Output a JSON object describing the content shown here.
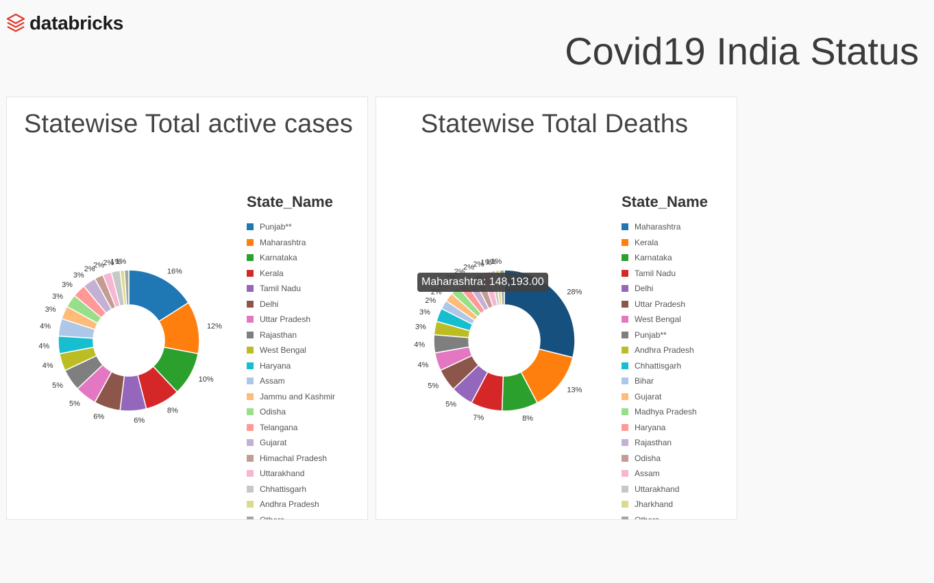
{
  "brand": {
    "name": "databricks",
    "logo_icon": "databricks-logo-icon"
  },
  "page_title": "Covid19 India Status",
  "charts": [
    {
      "title": "Statewise Total active cases",
      "legend_title": "State_Name",
      "legend_items": [
        "Punjab**",
        "Maharashtra",
        "Karnataka",
        "Kerala",
        "Tamil Nadu",
        "Delhi",
        "Uttar Pradesh",
        "Rajasthan",
        "West Bengal",
        "Haryana",
        "Assam",
        "Jammu and Kashmir",
        "Odisha",
        "Telangana",
        "Gujarat",
        "Himachal Pradesh",
        "Uttarakhand",
        "Chhattisgarh",
        "Andhra Pradesh",
        "Others"
      ]
    },
    {
      "title": "Statewise Total Deaths",
      "legend_title": "State_Name",
      "legend_items": [
        "Maharashtra",
        "Kerala",
        "Karnataka",
        "Tamil Nadu",
        "Delhi",
        "Uttar Pradesh",
        "West Bengal",
        "Punjab**",
        "Andhra Pradesh",
        "Chhattisgarh",
        "Bihar",
        "Gujarat",
        "Madhya Pradesh",
        "Haryana",
        "Rajasthan",
        "Odisha",
        "Assam",
        "Uttarakhand",
        "Jharkhand",
        "Others"
      ],
      "tooltip": "Maharashtra: 148,193.00"
    }
  ],
  "colors": [
    "#1f77b4",
    "#ff7f0e",
    "#2ca02c",
    "#d62728",
    "#9467bd",
    "#8c564b",
    "#e377c2",
    "#7f7f7f",
    "#bcbd22",
    "#17becf",
    "#aec7e8",
    "#ffbb78",
    "#98df8a",
    "#ff9896",
    "#c5b0d5",
    "#c49c94",
    "#f7b6d2",
    "#c7c7c7",
    "#dbdb8d",
    "#a5a5a5"
  ],
  "chart_data": [
    {
      "type": "pie",
      "title": "Statewise Total active cases",
      "legend_title": "State_Name",
      "categories": [
        "Punjab**",
        "Maharashtra",
        "Karnataka",
        "Kerala",
        "Tamil Nadu",
        "Delhi",
        "Uttar Pradesh",
        "Rajasthan",
        "West Bengal",
        "Haryana",
        "Assam",
        "Jammu and Kashmir",
        "Odisha",
        "Telangana",
        "Gujarat",
        "Himachal Pradesh",
        "Uttarakhand",
        "Chhattisgarh",
        "Andhra Pradesh",
        "Others"
      ],
      "values": [
        16,
        12,
        10,
        8,
        6,
        6,
        5,
        5,
        4,
        4,
        4,
        3,
        3,
        3,
        3,
        2,
        2,
        2,
        1,
        1
      ],
      "labels": [
        "16%",
        "12%",
        "10%",
        "8%",
        "6%",
        "6%",
        "5%",
        "5%",
        "4%",
        "4%",
        "4%",
        "3%",
        "3%",
        "3%",
        "3%",
        "2%",
        "2%",
        "2%",
        "1%",
        "1%"
      ],
      "legend_position": "right"
    },
    {
      "type": "pie",
      "title": "Statewise Total Deaths",
      "legend_title": "State_Name",
      "categories": [
        "Maharashtra",
        "Kerala",
        "Karnataka",
        "Tamil Nadu",
        "Delhi",
        "Uttar Pradesh",
        "West Bengal",
        "Punjab**",
        "Andhra Pradesh",
        "Chhattisgarh",
        "Bihar",
        "Gujarat",
        "Madhya Pradesh",
        "Haryana",
        "Rajasthan",
        "Odisha",
        "Assam",
        "Uttarakhand",
        "Jharkhand",
        "Others"
      ],
      "values": [
        28,
        13,
        8,
        7,
        5,
        5,
        4,
        4,
        3,
        3,
        2,
        2,
        2,
        2,
        2,
        2,
        2,
        1,
        1,
        1
      ],
      "labels": [
        "28%",
        "13%",
        "8%",
        "7%",
        "5%",
        "5%",
        "4%",
        "4%",
        "3%",
        "3%",
        "2%",
        "2%",
        "2%",
        "2%",
        "2%",
        "2%",
        "2%",
        "1%",
        "1%",
        "1%"
      ],
      "highlighted": "Maharashtra",
      "highlight_value": 148193.0,
      "legend_position": "right"
    }
  ]
}
